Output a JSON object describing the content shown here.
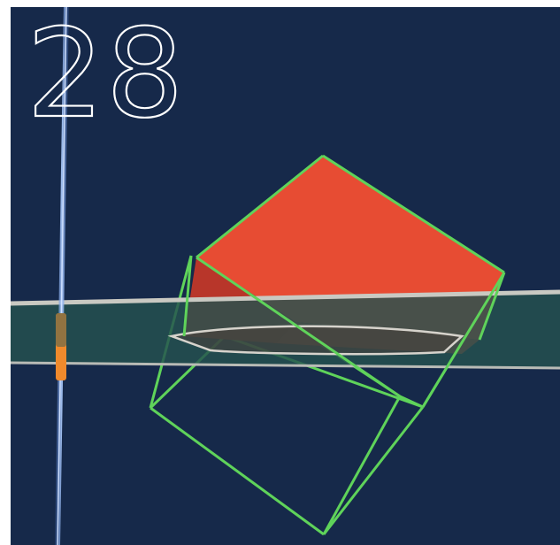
{
  "frame": {
    "number": "28"
  },
  "colors": {
    "background": "#16294a",
    "cube_face_top": "#e74c33",
    "cube_face_side": "#b8362a",
    "cube_edges": "#5fd35a",
    "water_band": "#24524f",
    "band_edges": "#c9c9c2",
    "vertical_axis": "#7fa6e6",
    "axis_marker": "#f08a2c"
  }
}
